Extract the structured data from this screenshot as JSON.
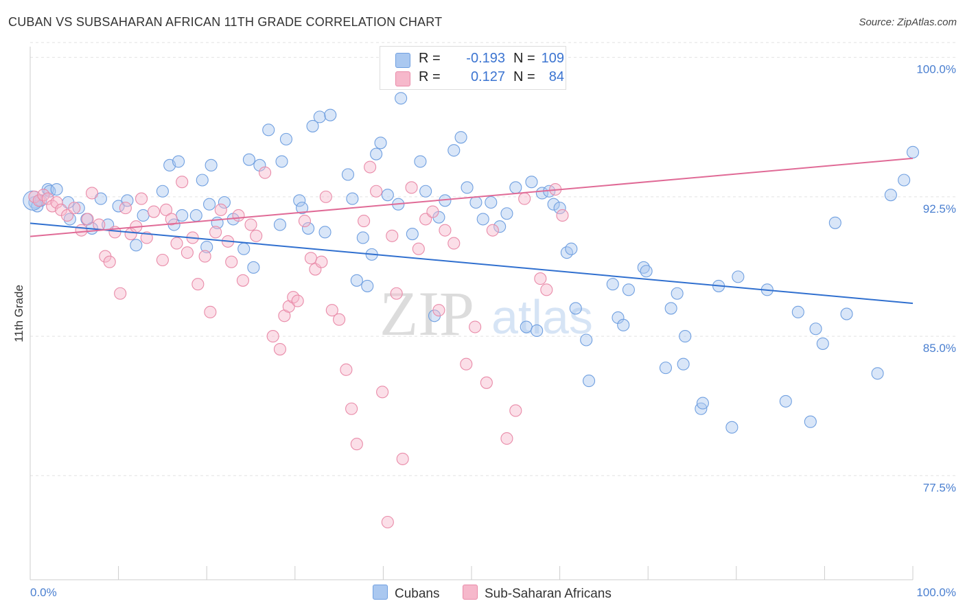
{
  "title": "CUBAN VS SUBSAHARAN AFRICAN 11TH GRADE CORRELATION CHART",
  "source": "Source: ZipAtlas.com",
  "watermark": {
    "zip": "ZIP",
    "atlas": "atlas"
  },
  "legend": {
    "r_label": "R =",
    "n_label": "N =",
    "rows": [
      {
        "r": "-0.193",
        "n": "109",
        "color": "#aac8f0",
        "border": "#6f9fe0"
      },
      {
        "r": "0.127",
        "n": "84",
        "color": "#f6b8cb",
        "border": "#e98aa8"
      }
    ]
  },
  "bottom_legend": [
    "Cubans",
    "Sub-Saharan Africans"
  ],
  "chart_data": {
    "type": "scatter",
    "title": "CUBAN VS SUBSAHARAN AFRICAN 11TH GRADE CORRELATION CHART",
    "ylabel": "11th Grade",
    "xlabel": "",
    "x_tick_labels": [
      "0.0%",
      "100.0%"
    ],
    "y_tick_labels": [
      "100.0%",
      "92.5%",
      "85.0%",
      "77.5%"
    ],
    "y_ticks": [
      100.0,
      92.5,
      85.0,
      77.5
    ],
    "xlim": [
      0,
      100
    ],
    "ylim": [
      71.9,
      100.8
    ],
    "grid": true,
    "legend_position": "top-center",
    "series": [
      {
        "name": "Cubans",
        "color": "#6f9fe0",
        "fill": "#aac8f0",
        "trend": {
          "x0": 0,
          "y0": 91.08,
          "x1": 100,
          "y1": 86.77
        },
        "points": [
          [
            0.5,
            92.2
          ],
          [
            0.8,
            92.0
          ],
          [
            1.2,
            92.3
          ],
          [
            2.0,
            92.9
          ],
          [
            2.2,
            92.8
          ],
          [
            3.0,
            92.9
          ],
          [
            4.3,
            92.2
          ],
          [
            4.5,
            91.3
          ],
          [
            5.5,
            91.9
          ],
          [
            6.4,
            91.3
          ],
          [
            7.0,
            90.8
          ],
          [
            8.0,
            92.4
          ],
          [
            8.8,
            91.0
          ],
          [
            10.0,
            92.0
          ],
          [
            11.0,
            92.3
          ],
          [
            12.0,
            89.9
          ],
          [
            12.8,
            91.5
          ],
          [
            15.0,
            92.8
          ],
          [
            15.8,
            94.2
          ],
          [
            16.3,
            91.0
          ],
          [
            16.8,
            94.4
          ],
          [
            17.2,
            91.5
          ],
          [
            18.8,
            91.5
          ],
          [
            19.5,
            93.4
          ],
          [
            20.0,
            89.8
          ],
          [
            20.3,
            92.1
          ],
          [
            20.5,
            94.2
          ],
          [
            21.2,
            91.1
          ],
          [
            22.0,
            92.2
          ],
          [
            23.0,
            91.3
          ],
          [
            24.2,
            89.7
          ],
          [
            24.8,
            94.5
          ],
          [
            25.3,
            88.7
          ],
          [
            26.0,
            94.2
          ],
          [
            28.3,
            91.0
          ],
          [
            27.0,
            96.1
          ],
          [
            28.5,
            94.4
          ],
          [
            29.0,
            95.6
          ],
          [
            30.5,
            92.3
          ],
          [
            30.8,
            91.9
          ],
          [
            31.5,
            90.8
          ],
          [
            32.0,
            96.3
          ],
          [
            32.8,
            96.8
          ],
          [
            33.4,
            90.6
          ],
          [
            34.0,
            96.9
          ],
          [
            36.0,
            93.7
          ],
          [
            36.5,
            92.4
          ],
          [
            37.0,
            88.0
          ],
          [
            37.7,
            90.3
          ],
          [
            38.2,
            87.7
          ],
          [
            38.7,
            89.4
          ],
          [
            39.2,
            94.8
          ],
          [
            39.7,
            95.4
          ],
          [
            40.5,
            92.6
          ],
          [
            41.7,
            92.1
          ],
          [
            42.0,
            97.8
          ],
          [
            43.3,
            90.5
          ],
          [
            44.2,
            94.4
          ],
          [
            44.8,
            92.8
          ],
          [
            45.8,
            86.1
          ],
          [
            46.3,
            91.4
          ],
          [
            47.0,
            92.3
          ],
          [
            48.0,
            95.0
          ],
          [
            48.8,
            95.7
          ],
          [
            49.5,
            93.0
          ],
          [
            50.5,
            92.2
          ],
          [
            51.3,
            91.3
          ],
          [
            52.2,
            92.2
          ],
          [
            53.2,
            90.9
          ],
          [
            54.0,
            91.6
          ],
          [
            55.0,
            93.0
          ],
          [
            56.2,
            85.5
          ],
          [
            56.8,
            93.3
          ],
          [
            57.4,
            85.3
          ],
          [
            58.0,
            92.7
          ],
          [
            58.8,
            92.8
          ],
          [
            59.3,
            92.1
          ],
          [
            60.0,
            91.9
          ],
          [
            60.8,
            89.5
          ],
          [
            61.3,
            89.7
          ],
          [
            61.8,
            86.5
          ],
          [
            63.0,
            84.8
          ],
          [
            63.3,
            82.6
          ],
          [
            66.0,
            87.8
          ],
          [
            66.6,
            86.0
          ],
          [
            67.2,
            85.6
          ],
          [
            67.8,
            87.5
          ],
          [
            69.5,
            88.7
          ],
          [
            69.8,
            88.5
          ],
          [
            72.0,
            83.3
          ],
          [
            72.6,
            86.5
          ],
          [
            73.3,
            87.3
          ],
          [
            74.0,
            83.5
          ],
          [
            74.2,
            85.0
          ],
          [
            76.0,
            81.1
          ],
          [
            76.2,
            81.4
          ],
          [
            78.0,
            87.7
          ],
          [
            79.5,
            80.1
          ],
          [
            80.2,
            88.2
          ],
          [
            83.5,
            87.5
          ],
          [
            85.6,
            81.5
          ],
          [
            87.0,
            86.3
          ],
          [
            88.4,
            80.4
          ],
          [
            89.0,
            85.4
          ],
          [
            89.8,
            84.6
          ],
          [
            91.2,
            91.1
          ],
          [
            92.5,
            86.2
          ],
          [
            96.0,
            83.0
          ],
          [
            97.5,
            92.6
          ],
          [
            99.0,
            93.4
          ],
          [
            100.0,
            94.9
          ]
        ]
      },
      {
        "name": "Sub-Saharan Africans",
        "color": "#e98aa8",
        "fill": "#f6b8cb",
        "trend": {
          "x0": 0,
          "y0": 90.37,
          "x1": 100,
          "y1": 94.57
        },
        "points": [
          [
            0.5,
            92.5
          ],
          [
            1.0,
            92.3
          ],
          [
            1.5,
            92.6
          ],
          [
            2.0,
            92.4
          ],
          [
            2.5,
            92.0
          ],
          [
            3.0,
            92.2
          ],
          [
            3.5,
            91.8
          ],
          [
            4.2,
            91.5
          ],
          [
            5.0,
            91.9
          ],
          [
            5.8,
            90.7
          ],
          [
            6.5,
            91.3
          ],
          [
            7.0,
            92.7
          ],
          [
            7.8,
            91.0
          ],
          [
            8.5,
            89.3
          ],
          [
            9.0,
            89.0
          ],
          [
            9.6,
            90.6
          ],
          [
            10.2,
            87.3
          ],
          [
            10.8,
            91.9
          ],
          [
            11.4,
            90.5
          ],
          [
            12.0,
            90.9
          ],
          [
            12.6,
            92.4
          ],
          [
            13.2,
            90.3
          ],
          [
            14.0,
            91.7
          ],
          [
            15.0,
            89.1
          ],
          [
            15.4,
            91.8
          ],
          [
            16.0,
            91.3
          ],
          [
            16.6,
            90.0
          ],
          [
            17.2,
            93.3
          ],
          [
            17.8,
            89.5
          ],
          [
            18.4,
            90.3
          ],
          [
            19.0,
            87.8
          ],
          [
            19.8,
            89.3
          ],
          [
            20.4,
            86.3
          ],
          [
            21.0,
            90.6
          ],
          [
            21.6,
            91.8
          ],
          [
            22.4,
            90.1
          ],
          [
            22.8,
            89.0
          ],
          [
            23.6,
            91.5
          ],
          [
            24.1,
            88.0
          ],
          [
            25.0,
            91.0
          ],
          [
            25.6,
            90.4
          ],
          [
            26.6,
            93.8
          ],
          [
            27.5,
            85.0
          ],
          [
            28.3,
            84.3
          ],
          [
            28.8,
            86.1
          ],
          [
            29.3,
            86.6
          ],
          [
            29.8,
            87.1
          ],
          [
            30.3,
            86.9
          ],
          [
            31.1,
            91.2
          ],
          [
            31.8,
            89.2
          ],
          [
            32.3,
            88.6
          ],
          [
            33.0,
            89.0
          ],
          [
            33.5,
            92.5
          ],
          [
            34.2,
            86.4
          ],
          [
            35.0,
            85.9
          ],
          [
            35.8,
            83.2
          ],
          [
            36.4,
            81.1
          ],
          [
            37.0,
            79.2
          ],
          [
            37.8,
            91.2
          ],
          [
            38.5,
            94.1
          ],
          [
            39.2,
            92.8
          ],
          [
            39.9,
            82.0
          ],
          [
            40.5,
            75.0
          ],
          [
            41.0,
            90.4
          ],
          [
            41.5,
            87.3
          ],
          [
            42.2,
            78.4
          ],
          [
            43.2,
            93.0
          ],
          [
            44.0,
            89.7
          ],
          [
            44.8,
            91.3
          ],
          [
            45.6,
            91.7
          ],
          [
            46.3,
            86.4
          ],
          [
            47.0,
            90.7
          ],
          [
            48.0,
            90.0
          ],
          [
            49.4,
            83.5
          ],
          [
            50.4,
            85.5
          ],
          [
            51.7,
            82.5
          ],
          [
            52.4,
            90.7
          ],
          [
            54.0,
            79.5
          ],
          [
            55.0,
            81.0
          ],
          [
            56.0,
            92.4
          ],
          [
            57.8,
            88.1
          ],
          [
            58.5,
            87.5
          ],
          [
            59.5,
            92.9
          ],
          [
            60.3,
            91.5
          ]
        ]
      }
    ]
  }
}
